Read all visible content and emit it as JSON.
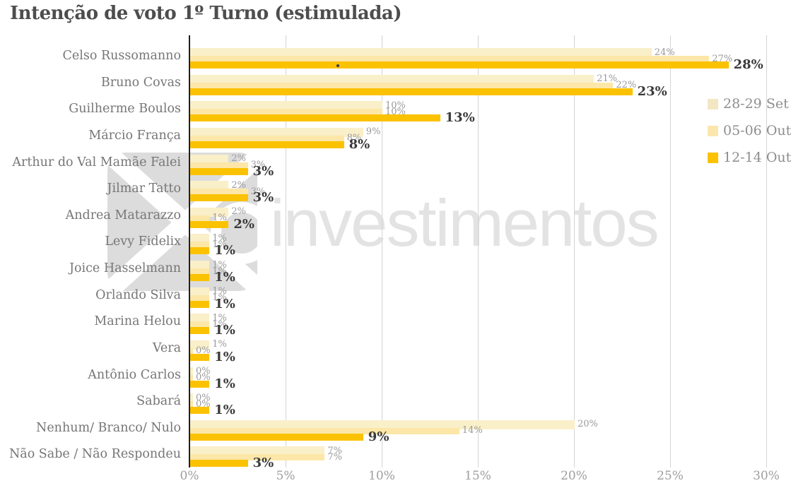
{
  "title": "Intenção de voto 1º Turno (estimulada)",
  "watermark": {
    "brand": "investimentos"
  },
  "legend": [
    {
      "label": "28-29 Set",
      "color": "#f3e6c2"
    },
    {
      "label": "05-06 Out",
      "color": "#fbe7ae"
    },
    {
      "label": "12-14 Out",
      "color": "#fcc200"
    }
  ],
  "chart_data": {
    "type": "bar",
    "orientation": "horizontal",
    "title": "Intenção de voto 1º Turno (estimulada)",
    "categories": [
      "Celso Russomanno",
      "Bruno Covas",
      "Guilherme Boulos",
      "Márcio França",
      "Arthur do Val Mamãe Falei",
      "Jilmar Tatto",
      "Andrea Matarazzo",
      "Levy Fidelix",
      "Joice Hasselmann",
      "Orlando Silva",
      "Marina Helou",
      "Vera",
      "Antônio Carlos",
      "Sabará",
      "Nenhum/ Branco/ Nulo",
      "Não Sabe / Não Respondeu"
    ],
    "series": [
      {
        "name": "28-29 Set",
        "color": "#f9efc9",
        "values": [
          24,
          21,
          10,
          9,
          2,
          2,
          2,
          1,
          1,
          1,
          1,
          1,
          0,
          0,
          20,
          7
        ]
      },
      {
        "name": "05-06 Out",
        "color": "#fce7a8",
        "values": [
          27,
          22,
          10,
          8,
          3,
          3,
          1,
          1,
          1,
          1,
          1,
          0,
          0,
          0,
          14,
          7
        ]
      },
      {
        "name": "12-14 Out",
        "color": "#fbc202",
        "values": [
          28,
          23,
          13,
          8,
          3,
          3,
          2,
          1,
          1,
          1,
          1,
          1,
          1,
          1,
          9,
          3
        ]
      }
    ],
    "value_suffix": "%",
    "xlim": [
      0,
      30
    ],
    "x_ticks": [
      {
        "v": 0,
        "label": "0%"
      },
      {
        "v": 5,
        "label": "5%"
      },
      {
        "v": 10,
        "label": "10%"
      },
      {
        "v": 15,
        "label": "15%"
      },
      {
        "v": 20,
        "label": "20%"
      },
      {
        "v": 25,
        "label": "25%"
      },
      {
        "v": 30,
        "label": "30%"
      }
    ],
    "grid": true,
    "legend_position": "right-top"
  }
}
